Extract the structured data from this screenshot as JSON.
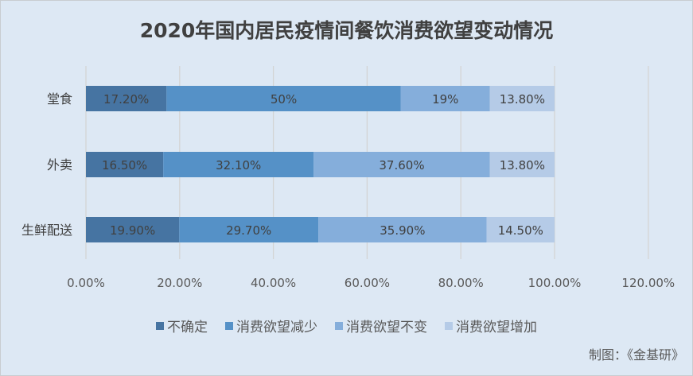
{
  "chart_data": {
    "type": "bar",
    "orientation": "horizontal",
    "stacked": true,
    "title": "2020年国内居民疫情间餐饮消费欲望变动情况",
    "categories": [
      "堂食",
      "外卖",
      "生鲜配送"
    ],
    "series": [
      {
        "name": "不确定",
        "color": "#4674a2",
        "values": [
          17.2,
          16.5,
          19.9
        ],
        "labels": [
          "17.20%",
          "16.50%",
          "19.90%"
        ]
      },
      {
        "name": "消费欲望减少",
        "color": "#5591c7",
        "values": [
          50,
          32.1,
          29.7
        ],
        "labels": [
          "50%",
          "32.10%",
          "29.70%"
        ]
      },
      {
        "name": "消费欲望不变",
        "color": "#85aedb",
        "values": [
          19,
          37.6,
          35.9
        ],
        "labels": [
          "19%",
          "37.60%",
          "35.90%"
        ]
      },
      {
        "name": "消费欲望增加",
        "color": "#b5cbe7",
        "values": [
          13.8,
          13.8,
          14.5
        ],
        "labels": [
          "13.80%",
          "13.80%",
          "14.50%"
        ]
      }
    ],
    "xlim": [
      0,
      120
    ],
    "xticks": [
      "0.00%",
      "20.00%",
      "40.00%",
      "60.00%",
      "80.00%",
      "100.00%",
      "120.00%"
    ],
    "grid": true,
    "legend_position": "bottom"
  },
  "credit": "制图：《金基研》"
}
